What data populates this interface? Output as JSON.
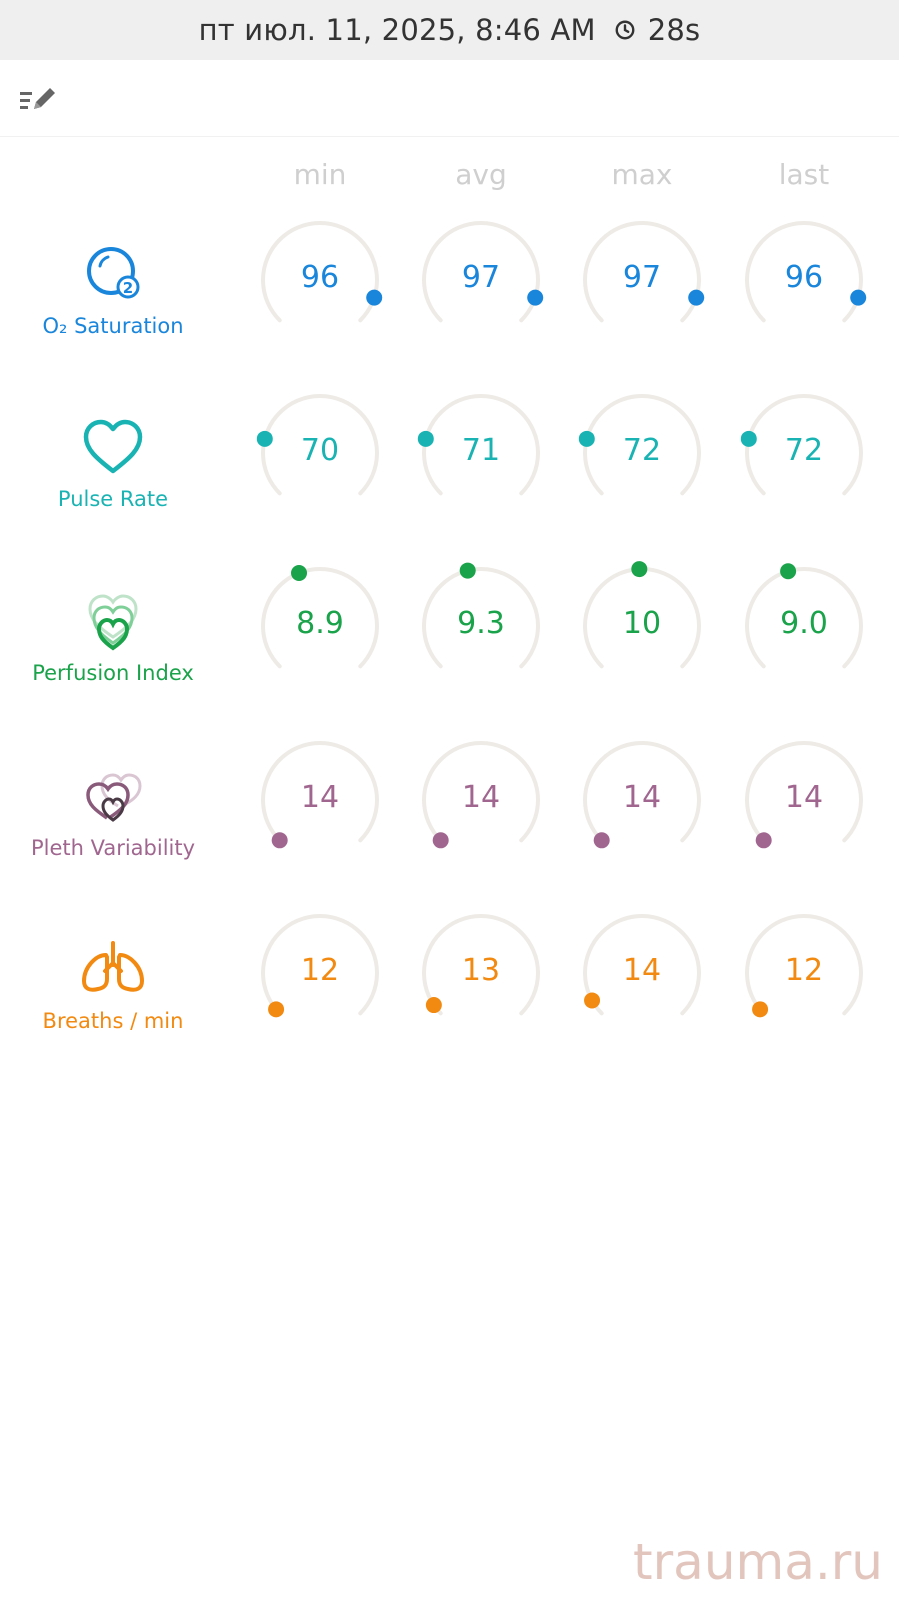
{
  "status_bar": {
    "datetime": "пт июл. 11, 2025, 8:46 AM",
    "duration": "28s",
    "icon": "clock-icon"
  },
  "toolbar": {
    "edit_icon": "edit-list-icon"
  },
  "columns": [
    "min",
    "avg",
    "max",
    "last"
  ],
  "metrics": [
    {
      "id": "spo2",
      "label": "O₂ Saturation",
      "icon": "o2-saturation-icon",
      "color": "#1a86db",
      "values": [
        "96",
        "97",
        "97",
        "96"
      ],
      "gauge_fraction": [
        0.9,
        0.9,
        0.9,
        0.9
      ]
    },
    {
      "id": "pulse",
      "label": "Pulse Rate",
      "icon": "heart-outline-icon",
      "color": "#1ab3b3",
      "values": [
        "70",
        "71",
        "72",
        "72"
      ],
      "gauge_fraction": [
        0.22,
        0.22,
        0.22,
        0.22
      ]
    },
    {
      "id": "pi",
      "label": "Perfusion Index",
      "icon": "layered-hearts-icon",
      "color": "#1aa34a",
      "values": [
        "8.9",
        "9.3",
        "10",
        "9.0"
      ],
      "gauge_fraction": [
        0.42,
        0.45,
        0.49,
        0.44
      ]
    },
    {
      "id": "pvi",
      "label": "Pleth Variability",
      "icon": "pleth-hearts-icon",
      "color": "#a0668f",
      "values": [
        "14",
        "14",
        "14",
        "14"
      ],
      "gauge_fraction": [
        0.0,
        0.0,
        0.0,
        0.0
      ]
    },
    {
      "id": "rr",
      "label": "Breaths / min",
      "icon": "lungs-icon",
      "color": "#f28a12",
      "values": [
        "12",
        "13",
        "14",
        "12"
      ],
      "gauge_fraction": [
        0.02,
        0.04,
        0.06,
        0.02
      ]
    }
  ],
  "watermark": "trauma.ru"
}
